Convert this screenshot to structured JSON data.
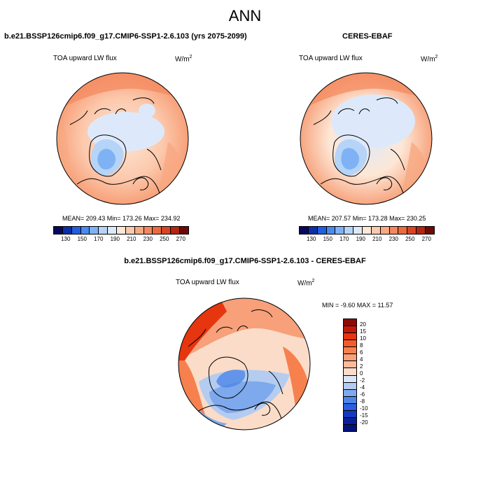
{
  "main_title": "ANN",
  "panels": {
    "model": {
      "title": "b.e21.BSSP126cmip6.f09_g17.CMIP6-SSP1-2.6.103 (yrs 2075-2099)",
      "var_label": "TOA upward LW flux",
      "units_base": "W/m",
      "units_exp": "2",
      "stats": "MEAN= 209.43  Min= 173.26  Max= 234.92"
    },
    "obs": {
      "title": "CERES-EBAF",
      "var_label": "TOA upward LW flux",
      "units_base": "W/m",
      "units_exp": "2",
      "stats": "MEAN= 207.57  Min= 173.28  Max= 230.25"
    },
    "diff": {
      "title": "b.e21.BSSP126cmip6.f09_g17.CMIP6-SSP1-2.6.103 - CERES-EBAF",
      "var_label": "TOA upward LW flux",
      "units_base": "W/m",
      "units_exp": "2",
      "stats": "MIN =  -9.60 MAX =  11.57"
    }
  },
  "colorbar_main": {
    "ticks": [
      "130",
      "150",
      "170",
      "190",
      "210",
      "230",
      "250",
      "270"
    ],
    "colors": [
      "#08085e",
      "#0a2fa8",
      "#1f5fe0",
      "#4a8af0",
      "#7fb2f5",
      "#b5d4f7",
      "#dde9fa",
      "#fde7d6",
      "#fcc9ad",
      "#f8a982",
      "#f4885d",
      "#ec6a3c",
      "#d94522",
      "#b52510",
      "#6e0a04"
    ]
  },
  "colorbar_diff": {
    "ticks": [
      "20",
      "15",
      "10",
      "8",
      "6",
      "4",
      "2",
      "0",
      "-2",
      "-4",
      "-6",
      "-8",
      "-10",
      "-15",
      "-20"
    ],
    "colors": [
      "#8b0a04",
      "#c2180c",
      "#e6360f",
      "#f45b2b",
      "#f6814f",
      "#f7a07a",
      "#f8bb9d",
      "#fbdcc8",
      "#d8e6f7",
      "#b4ccf0",
      "#7ea9ec",
      "#4d86e8",
      "#2a5de0",
      "#1438c0",
      "#0a1f9a",
      "#061278"
    ]
  }
}
